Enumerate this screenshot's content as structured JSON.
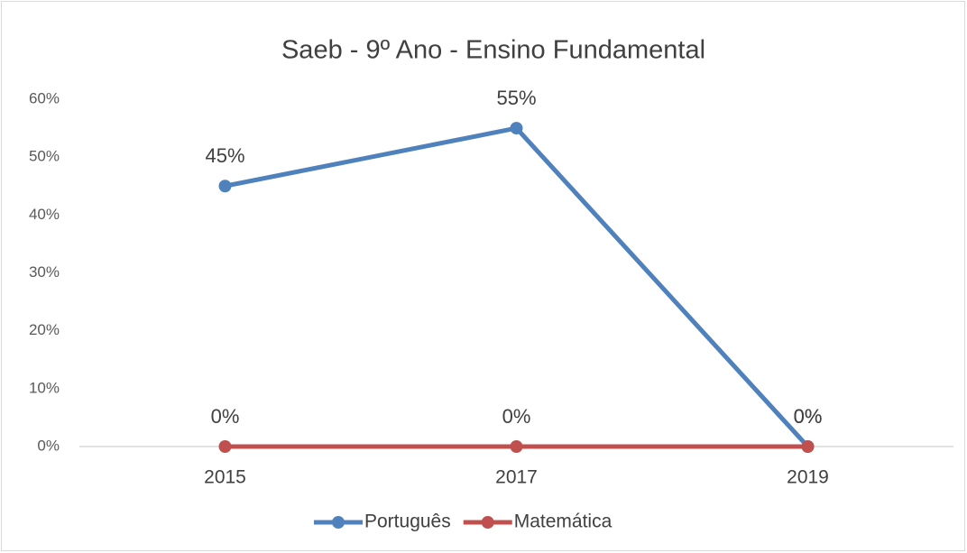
{
  "chart_data": {
    "type": "line",
    "title": "Saeb - 9º Ano - Ensino Fundamental",
    "categories": [
      "2015",
      "2017",
      "2019"
    ],
    "series": [
      {
        "name": "Português",
        "color": "#4f81bd",
        "values": [
          45,
          55,
          0
        ],
        "value_labels": [
          "45%",
          "55%",
          "0%"
        ]
      },
      {
        "name": "Matemática",
        "color": "#c0504d",
        "values": [
          0,
          0,
          0
        ],
        "value_labels": [
          "0%",
          "0%",
          "0%"
        ]
      }
    ],
    "ylim": [
      0,
      60
    ],
    "yticks": [
      {
        "value": 0,
        "label": "0%"
      },
      {
        "value": 10,
        "label": "10%"
      },
      {
        "value": 20,
        "label": "20%"
      },
      {
        "value": 30,
        "label": "30%"
      },
      {
        "value": 40,
        "label": "40%"
      },
      {
        "value": 50,
        "label": "50%"
      },
      {
        "value": 60,
        "label": "60%"
      }
    ],
    "grid": false,
    "legend": "bottom"
  }
}
